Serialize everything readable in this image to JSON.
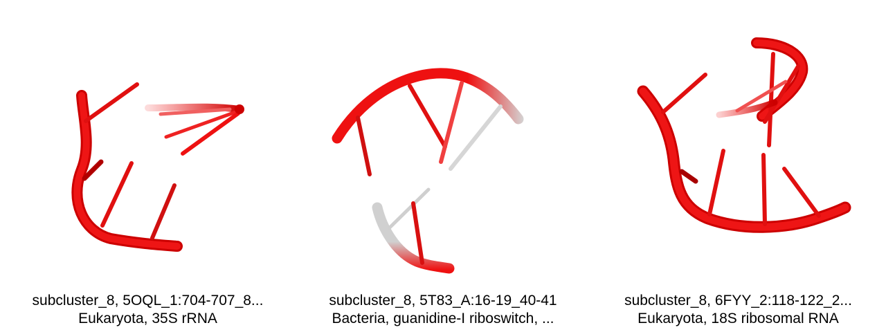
{
  "colors": {
    "strand": "#ee1111",
    "strand_dark": "#a80000",
    "grey": "#c8c8c8"
  },
  "panels": [
    {
      "title": "subcluster_8, 5OQL_1:704-707_8...",
      "subtitle": "Eukaryota, 35S rRNA"
    },
    {
      "title": "subcluster_8, 5T83_A:16-19_40-41",
      "subtitle": "Bacteria, guanidine-I riboswitch, ..."
    },
    {
      "title": "subcluster_8, 6FYY_2:118-122_2...",
      "subtitle": "Eukaryota, 18S ribosomal RNA"
    }
  ]
}
